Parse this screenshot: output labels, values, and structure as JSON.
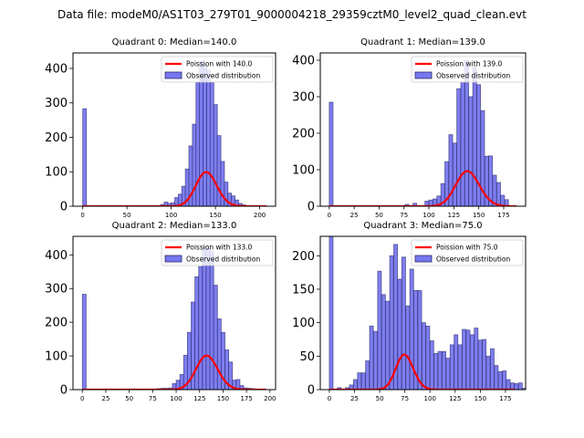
{
  "figure": {
    "suptitle": "Data file: modeM0/AS1T03_279T01_9000004218_29359cztM0_level2_quad_clean.evt"
  },
  "chart_data": [
    {
      "type": "bar",
      "title": "Quadrant 0: Median=140.0",
      "xlabel": "",
      "ylabel": "",
      "xlim": [
        -11,
        218
      ],
      "ylim": [
        0,
        445
      ],
      "xticks": [
        0,
        50,
        100,
        150,
        200
      ],
      "yticks": [
        0,
        100,
        200,
        300,
        400
      ],
      "legend": {
        "position": "top-right",
        "entries": [
          "Poission with 140.0",
          "Observed distribution"
        ]
      },
      "bin_width": 4.2,
      "bins": [
        {
          "x": 0,
          "count": 283
        },
        {
          "x": 88,
          "count": 5
        },
        {
          "x": 92,
          "count": 12
        },
        {
          "x": 96,
          "count": 8
        },
        {
          "x": 100,
          "count": 10
        },
        {
          "x": 104,
          "count": 25
        },
        {
          "x": 108,
          "count": 35
        },
        {
          "x": 112,
          "count": 58
        },
        {
          "x": 116,
          "count": 108
        },
        {
          "x": 120,
          "count": 175
        },
        {
          "x": 124,
          "count": 238
        },
        {
          "x": 128,
          "count": 360
        },
        {
          "x": 132,
          "count": 420
        },
        {
          "x": 136,
          "count": 410
        },
        {
          "x": 140,
          "count": 395
        },
        {
          "x": 144,
          "count": 360
        },
        {
          "x": 148,
          "count": 295
        },
        {
          "x": 152,
          "count": 205
        },
        {
          "x": 156,
          "count": 130
        },
        {
          "x": 160,
          "count": 70
        },
        {
          "x": 164,
          "count": 38
        },
        {
          "x": 168,
          "count": 30
        },
        {
          "x": 172,
          "count": 18
        },
        {
          "x": 176,
          "count": 8
        },
        {
          "x": 180,
          "count": 4
        }
      ],
      "poisson": {
        "lambda": 140.0,
        "scale": 2940,
        "x_range": [
          0,
          208
        ]
      }
    },
    {
      "type": "bar",
      "title": "Quadrant 1: Median=139.0",
      "xlabel": "",
      "ylabel": "",
      "xlim": [
        -9,
        197
      ],
      "ylim": [
        0,
        420
      ],
      "xticks": [
        0,
        25,
        50,
        75,
        100,
        125,
        150,
        175
      ],
      "yticks": [
        0,
        100,
        200,
        300,
        400
      ],
      "legend": {
        "position": "top-right",
        "entries": [
          "Poission with 139.0",
          "Observed distribution"
        ]
      },
      "bin_width": 3.8,
      "bins": [
        {
          "x": 0,
          "count": 285
        },
        {
          "x": 76,
          "count": 5
        },
        {
          "x": 84,
          "count": 8
        },
        {
          "x": 96,
          "count": 14
        },
        {
          "x": 100,
          "count": 17
        },
        {
          "x": 104,
          "count": 20
        },
        {
          "x": 108,
          "count": 28
        },
        {
          "x": 112,
          "count": 62
        },
        {
          "x": 116,
          "count": 122
        },
        {
          "x": 120,
          "count": 196
        },
        {
          "x": 124,
          "count": 173
        },
        {
          "x": 128,
          "count": 322
        },
        {
          "x": 132,
          "count": 340
        },
        {
          "x": 136,
          "count": 400
        },
        {
          "x": 140,
          "count": 300
        },
        {
          "x": 144,
          "count": 380
        },
        {
          "x": 148,
          "count": 333
        },
        {
          "x": 152,
          "count": 262
        },
        {
          "x": 156,
          "count": 137
        },
        {
          "x": 160,
          "count": 138
        },
        {
          "x": 164,
          "count": 85
        },
        {
          "x": 168,
          "count": 65
        },
        {
          "x": 172,
          "count": 30
        },
        {
          "x": 176,
          "count": 18
        }
      ],
      "poisson": {
        "lambda": 139.0,
        "scale": 2840,
        "x_range": [
          0,
          188
        ]
      }
    },
    {
      "type": "bar",
      "title": "Quadrant 2: Median=133.0",
      "xlabel": "",
      "ylabel": "",
      "xlim": [
        -10,
        206
      ],
      "ylim": [
        0,
        455
      ],
      "xticks": [
        0,
        25,
        50,
        75,
        100,
        125,
        150,
        175,
        200
      ],
      "yticks": [
        0,
        100,
        200,
        300,
        400
      ],
      "legend": {
        "position": "top-right",
        "entries": [
          "Poission with 133.0",
          "Observed distribution"
        ]
      },
      "bin_width": 4.0,
      "bins": [
        {
          "x": 0,
          "count": 283
        },
        {
          "x": 80,
          "count": 3
        },
        {
          "x": 84,
          "count": 4
        },
        {
          "x": 88,
          "count": 4
        },
        {
          "x": 92,
          "count": 5
        },
        {
          "x": 96,
          "count": 18
        },
        {
          "x": 100,
          "count": 28
        },
        {
          "x": 104,
          "count": 45
        },
        {
          "x": 108,
          "count": 102
        },
        {
          "x": 112,
          "count": 170
        },
        {
          "x": 116,
          "count": 260
        },
        {
          "x": 120,
          "count": 335
        },
        {
          "x": 124,
          "count": 365
        },
        {
          "x": 128,
          "count": 425
        },
        {
          "x": 132,
          "count": 420
        },
        {
          "x": 136,
          "count": 410
        },
        {
          "x": 140,
          "count": 310
        },
        {
          "x": 144,
          "count": 210
        },
        {
          "x": 148,
          "count": 170
        },
        {
          "x": 152,
          "count": 118
        },
        {
          "x": 156,
          "count": 82
        },
        {
          "x": 160,
          "count": 28
        },
        {
          "x": 164,
          "count": 30
        },
        {
          "x": 168,
          "count": 12
        },
        {
          "x": 172,
          "count": 5
        },
        {
          "x": 176,
          "count": 4
        },
        {
          "x": 180,
          "count": 3
        }
      ],
      "poisson": {
        "lambda": 133.0,
        "scale": 2920,
        "x_range": [
          0,
          196
        ]
      }
    },
    {
      "type": "bar",
      "title": "Quadrant 3: Median=75.0",
      "xlabel": "",
      "ylabel": "",
      "xlim": [
        -9,
        195
      ],
      "ylim": [
        0,
        229
      ],
      "xticks": [
        0,
        25,
        50,
        75,
        100,
        125,
        150,
        175
      ],
      "yticks": [
        0,
        50,
        100,
        150,
        200
      ],
      "legend": {
        "position": "top-right",
        "entries": [
          "Poission with 75.0",
          "Observed distribution"
        ]
      },
      "bin_width": 3.7,
      "bins": [
        {
          "x": 0,
          "count": 285
        },
        {
          "x": 8,
          "count": 3
        },
        {
          "x": 16,
          "count": 3
        },
        {
          "x": 20,
          "count": 7
        },
        {
          "x": 24,
          "count": 15
        },
        {
          "x": 28,
          "count": 25
        },
        {
          "x": 32,
          "count": 25
        },
        {
          "x": 36,
          "count": 43
        },
        {
          "x": 40,
          "count": 95
        },
        {
          "x": 44,
          "count": 87
        },
        {
          "x": 48,
          "count": 177
        },
        {
          "x": 52,
          "count": 142
        },
        {
          "x": 56,
          "count": 132
        },
        {
          "x": 60,
          "count": 200
        },
        {
          "x": 64,
          "count": 217
        },
        {
          "x": 68,
          "count": 165
        },
        {
          "x": 72,
          "count": 198
        },
        {
          "x": 76,
          "count": 125
        },
        {
          "x": 80,
          "count": 180
        },
        {
          "x": 84,
          "count": 148
        },
        {
          "x": 88,
          "count": 148
        },
        {
          "x": 92,
          "count": 100
        },
        {
          "x": 96,
          "count": 95
        },
        {
          "x": 100,
          "count": 73
        },
        {
          "x": 104,
          "count": 54
        },
        {
          "x": 108,
          "count": 57
        },
        {
          "x": 112,
          "count": 57
        },
        {
          "x": 116,
          "count": 47
        },
        {
          "x": 120,
          "count": 67
        },
        {
          "x": 124,
          "count": 82
        },
        {
          "x": 128,
          "count": 67
        },
        {
          "x": 132,
          "count": 90
        },
        {
          "x": 136,
          "count": 89
        },
        {
          "x": 140,
          "count": 82
        },
        {
          "x": 144,
          "count": 92
        },
        {
          "x": 148,
          "count": 74
        },
        {
          "x": 152,
          "count": 75
        },
        {
          "x": 156,
          "count": 50
        },
        {
          "x": 160,
          "count": 61
        },
        {
          "x": 164,
          "count": 36
        },
        {
          "x": 168,
          "count": 27
        },
        {
          "x": 172,
          "count": 28
        },
        {
          "x": 176,
          "count": 15
        },
        {
          "x": 180,
          "count": 10
        },
        {
          "x": 184,
          "count": 9
        },
        {
          "x": 188,
          "count": 10
        },
        {
          "x": 192,
          "count": 2
        }
      ],
      "poisson": {
        "lambda": 75.0,
        "scale": 1135,
        "x_range": [
          0,
          184
        ]
      }
    }
  ],
  "colors": {
    "bar_fill": "#7777f0",
    "bar_edge": "#2a2a6a",
    "poisson_line": "#ff0000",
    "axes": "#000000"
  }
}
